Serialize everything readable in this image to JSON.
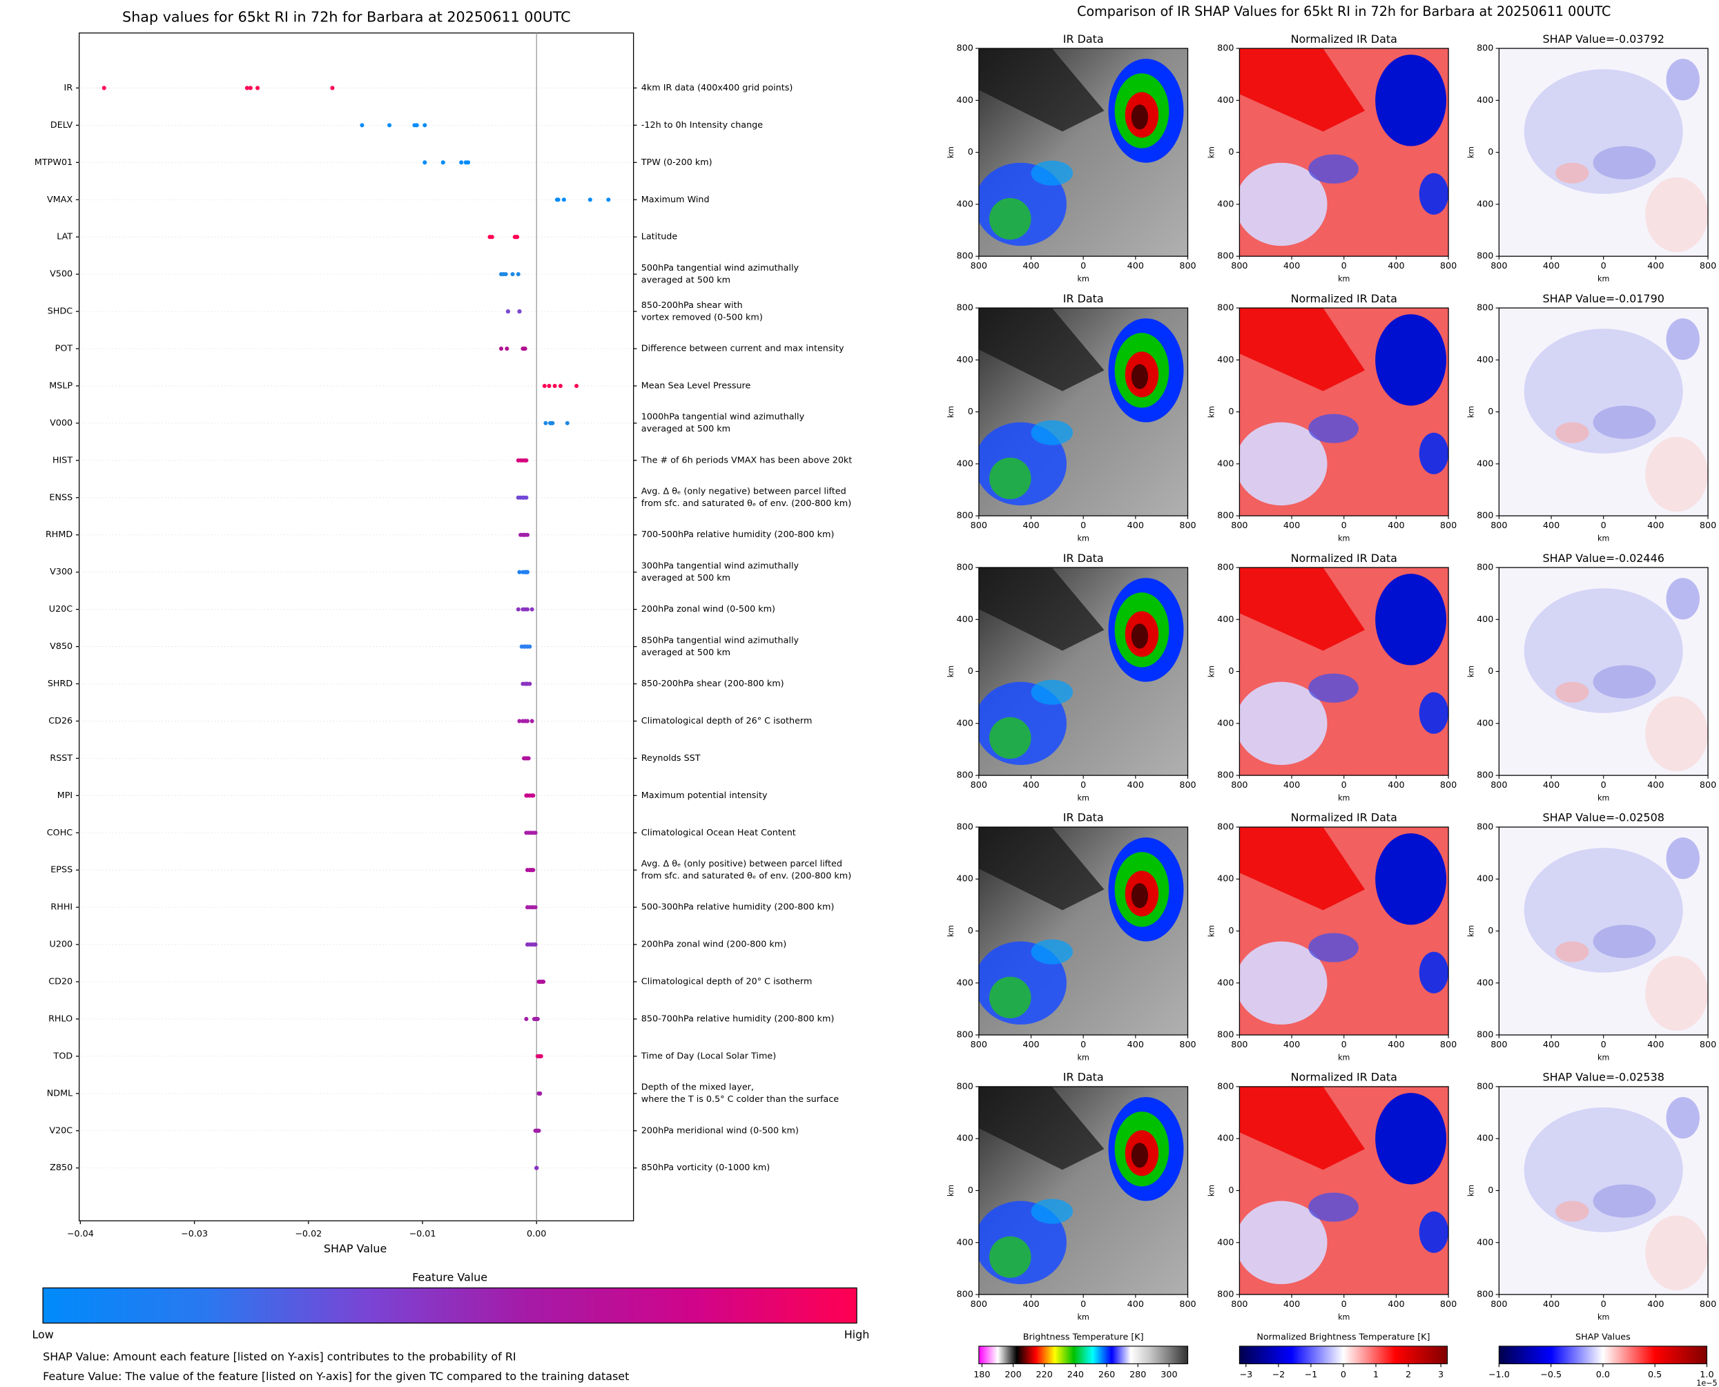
{
  "chart_data": [
    {
      "type": "strip",
      "title": "Shap values for 65kt RI in 72h for Barbara at 20250611 00UTC",
      "xlabel": "SHAP Value",
      "xlim": [
        -0.0401,
        0.0085
      ],
      "xticks": [
        {
          "value": -0.04,
          "label": "−0.04"
        },
        {
          "value": -0.03,
          "label": "−0.03"
        },
        {
          "value": -0.02,
          "label": "−0.02"
        },
        {
          "value": -0.01,
          "label": "−0.01"
        },
        {
          "value": 0,
          "label": "0.00"
        }
      ],
      "categories": [
        "IR",
        "DELV",
        "MTPW01",
        "VMAX",
        "LAT",
        "V500",
        "SHDC",
        "POT",
        "MSLP",
        "V000",
        "HIST",
        "ENSS",
        "RHMD",
        "V300",
        "U20C",
        "V850",
        "SHRD",
        "CD26",
        "RSST",
        "MPI",
        "COHC",
        "EPSS",
        "RHHI",
        "U200",
        "CD20",
        "RHLO",
        "TOD",
        "NDML",
        "V20C",
        "Z850"
      ],
      "descriptions": [
        [
          "4km IR data (400x400 grid points)"
        ],
        [
          "-12h to 0h Intensity change"
        ],
        [
          "TPW (0-200 km)"
        ],
        [
          "Maximum Wind"
        ],
        [
          "Latitude"
        ],
        [
          "500hPa tangential wind azimuthally",
          "averaged at 500 km"
        ],
        [
          "850-200hPa shear with",
          "vortex removed (0-500 km)"
        ],
        [
          "Difference between current and max intensity"
        ],
        [
          "Mean Sea Level Pressure"
        ],
        [
          "1000hPa tangential wind azimuthally",
          "averaged at 500 km"
        ],
        [
          "The # of 6h periods VMAX has been above 20kt"
        ],
        [
          "Avg. Δ θₑ (only negative) between parcel lifted",
          "from sfc. and saturated θₑ of env. (200-800 km)"
        ],
        [
          "700-500hPa relative humidity (200-800 km)"
        ],
        [
          "300hPa tangential wind azimuthally",
          "averaged at 500 km"
        ],
        [
          "200hPa zonal wind (0-500 km)"
        ],
        [
          "850hPa tangential wind azimuthally",
          "averaged at 500 km"
        ],
        [
          "850-200hPa shear (200-800 km)"
        ],
        [
          "Climatological depth of 26° C isotherm"
        ],
        [
          "Reynolds SST"
        ],
        [
          "Maximum potential intensity"
        ],
        [
          "Climatological Ocean Heat Content"
        ],
        [
          "Avg. Δ θₑ (only positive) between parcel lifted",
          "from sfc. and saturated θₑ of env. (200-800 km)"
        ],
        [
          "500-300hPa relative humidity (200-800 km)"
        ],
        [
          "200hPa zonal wind (200-800 km)"
        ],
        [
          "Climatological depth of 20° C isotherm"
        ],
        [
          "850-700hPa relative humidity (200-800 km)"
        ],
        [
          "Time of Day (Local Solar Time)"
        ],
        [
          "Depth of the mixed layer,",
          "where the T is 0.5° C colder than the surface"
        ],
        [
          "200hPa meridional wind (0-500 km)"
        ],
        [
          "850hPa vorticity (0-1000 km)"
        ]
      ],
      "values": [
        [
          -0.03792,
          -0.02538,
          -0.02508,
          -0.02446,
          -0.0179
        ],
        [
          -0.0153,
          -0.0129,
          -0.0107,
          -0.0105,
          -0.0098
        ],
        [
          -0.0098,
          -0.0082,
          -0.0066,
          -0.0062,
          -0.006
        ],
        [
          0.0018,
          0.0019,
          0.0024,
          0.0047,
          0.0063
        ],
        [
          -0.0041,
          -0.0039,
          -0.0019,
          -0.0018,
          -0.0017
        ],
        [
          -0.0031,
          -0.0029,
          -0.0027,
          -0.0021,
          -0.0016
        ],
        [
          -0.0025,
          -0.0025,
          -0.0015,
          -0.0015,
          -0.0015
        ],
        [
          -0.0031,
          -0.0026,
          -0.0012,
          -0.0011,
          -0.001
        ],
        [
          0.0007,
          0.0011,
          0.0016,
          0.0021,
          0.0035
        ],
        [
          0.0008,
          0.0012,
          0.0013,
          0.0014,
          0.0027
        ],
        [
          -0.0016,
          -0.0014,
          -0.0012,
          -0.001,
          -0.0009
        ],
        [
          -0.0016,
          -0.0014,
          -0.0012,
          -0.0011,
          -0.0009
        ],
        [
          -0.0014,
          -0.0012,
          -0.0011,
          -0.001,
          -0.0008
        ],
        [
          -0.0015,
          -0.0012,
          -0.001,
          -0.0009,
          -0.0008
        ],
        [
          -0.0016,
          -0.0012,
          -0.001,
          -0.0008,
          -0.0004
        ],
        [
          -0.0013,
          -0.0011,
          -0.001,
          -0.0008,
          -0.0006
        ],
        [
          -0.0012,
          -0.001,
          -0.0009,
          -0.0008,
          -0.0006
        ],
        [
          -0.0015,
          -0.0012,
          -0.001,
          -0.0008,
          -0.0004
        ],
        [
          -0.0011,
          -0.001,
          -0.0009,
          -0.0008,
          -0.0007
        ],
        [
          -0.0009,
          -0.0008,
          -0.0006,
          -0.0004,
          -0.0003
        ],
        [
          -0.0009,
          -0.0007,
          -0.0005,
          -0.0003,
          -0.0001
        ],
        [
          -0.0008,
          -0.0006,
          -0.0005,
          -0.0004,
          -0.0003
        ],
        [
          -0.0008,
          -0.0006,
          -0.0004,
          -0.0003,
          -0.0001
        ],
        [
          -0.0008,
          -0.0006,
          -0.0004,
          -0.0002,
          -0.0001
        ],
        [
          0.0002,
          0.0003,
          0.0004,
          0.0005,
          0.0006
        ],
        [
          -0.0009,
          -0.0002,
          -0.0001,
          0,
          0.0001
        ],
        [
          0.0001,
          0.0002,
          0.0003,
          0.0003,
          0.0004
        ],
        [
          0.0002,
          0.0002,
          0.0003,
          0.0003,
          0.0003
        ],
        [
          -0.0001,
          0,
          0.0001,
          0.0001,
          0.0002
        ],
        [
          0,
          0,
          0,
          0,
          0
        ]
      ],
      "colors": [
        "#ff0052",
        "#008bfb",
        "#008bfb",
        "#008bfb",
        "#ff0052",
        "#1e88e5",
        "#7a4ad0",
        "#b01090",
        "#ff0052",
        "#1e88e5",
        "#d6007c",
        "#7047d6",
        "#a020a8",
        "#2080f0",
        "#8a34c0",
        "#2f7ff0",
        "#8a34c0",
        "#a81ea8",
        "#b0109c",
        "#c8008e",
        "#a81ea8",
        "#b0109c",
        "#a81ea8",
        "#8a34c0",
        "#b0109c",
        "#a01ea8",
        "#e00070",
        "#a01ea8",
        "#a01ea8",
        "#8a34c0"
      ],
      "colorbar": {
        "title": "Feature Value",
        "low": "Low",
        "high": "High",
        "colors": [
          "#008bfb",
          "#2a78f0",
          "#7a44d4",
          "#a61aa6",
          "#d0048a",
          "#ff0052"
        ]
      },
      "notes": [
        "SHAP Value: Amount each feature [listed on Y-axis] contributes to the probability of RI",
        "Feature Value: The value of the feature [listed on Y-axis] for the given TC compared to the training dataset"
      ]
    },
    {
      "type": "image_grid",
      "title": "Comparison of IR SHAP Values for 65kt RI in 72h for Barbara at 20250611 00UTC",
      "xlabel": "km",
      "ylabel": "km",
      "xlim": [
        -800,
        800
      ],
      "ylim": [
        -800,
        800
      ],
      "xticks": [
        {
          "value": -800,
          "label": "800"
        },
        {
          "value": -400,
          "label": "400"
        },
        0,
        400,
        800
      ],
      "yticks": [
        {
          "value": -800,
          "label": "800"
        },
        {
          "value": -400,
          "label": "400"
        },
        0,
        400,
        800
      ],
      "rows": [
        {
          "titles": [
            "IR Data",
            "Normalized IR Data",
            "SHAP Value=-0.03792"
          ]
        },
        {
          "titles": [
            "IR Data",
            "Normalized IR Data",
            "SHAP Value=-0.01790"
          ]
        },
        {
          "titles": [
            "IR Data",
            "Normalized IR Data",
            "SHAP Value=-0.02446"
          ]
        },
        {
          "titles": [
            "IR Data",
            "Normalized IR Data",
            "SHAP Value=-0.02508"
          ]
        },
        {
          "titles": [
            "IR Data",
            "Normalized IR Data",
            "SHAP Value=-0.02538"
          ]
        }
      ],
      "colorbars": [
        {
          "label": "Brightness Temperature [K]",
          "lim": [
            178,
            312
          ],
          "ticks": [
            180,
            200,
            220,
            240,
            260,
            280,
            300
          ],
          "colors": [
            "#ff00ff",
            "#ffffff",
            "#000000",
            "#ff0000",
            "#ffff00",
            "#00c000",
            "#00ffff",
            "#0000ff",
            "#ffffff",
            "#c8c8c8",
            "#808080",
            "#303030"
          ]
        },
        {
          "label": "Normalized Brightness Temperature [K]",
          "lim": [
            -3.2,
            3.2
          ],
          "ticks": [
            {
              "value": -3,
              "label": "−3"
            },
            {
              "value": -2,
              "label": "−2"
            },
            {
              "value": -1,
              "label": "−1"
            },
            0,
            1,
            2,
            3
          ],
          "colors": [
            "#00004c",
            "#0000ff",
            "#ffffff",
            "#ff0000",
            "#800000"
          ]
        },
        {
          "label": "SHAP Values",
          "lim": [
            -1,
            1
          ],
          "ticks": [
            {
              "value": -1,
              "label": "−1.0"
            },
            {
              "value": -0.5,
              "label": "−0.5"
            },
            {
              "value": 0,
              "label": "0.0"
            },
            {
              "value": 0.5,
              "label": "0.5"
            },
            {
              "value": 1,
              "label": "1.0"
            }
          ],
          "offset_label": "1e−5",
          "colors": [
            "#00004c",
            "#0000ff",
            "#ffffff",
            "#ff0000",
            "#800000"
          ]
        }
      ]
    }
  ]
}
